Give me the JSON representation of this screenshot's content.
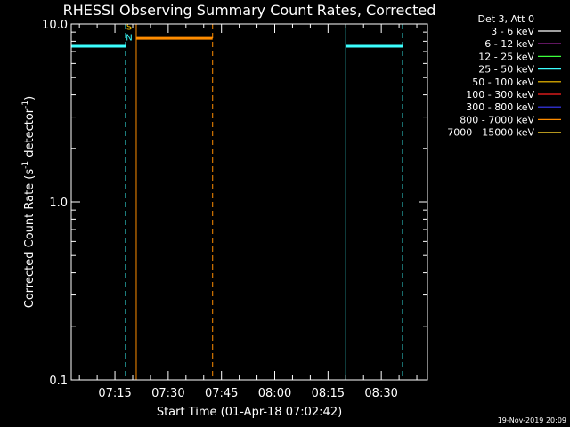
{
  "chart_data": {
    "type": "line",
    "title": "RHESSI Observing Summary Count Rates, Corrected",
    "xlabel": "Start Time (01-Apr-18 07:02:42)",
    "ylabel_main": "Corrected Count Rate (s",
    "ylabel_sup1": "-1",
    "ylabel_mid": " detector",
    "ylabel_sup2": "-1",
    "ylabel_end": ")",
    "yscale": "log",
    "ylim": [
      0.1,
      10.0
    ],
    "y_ticks": [
      {
        "value": 0.1,
        "label": "0.1"
      },
      {
        "value": 1.0,
        "label": "1.0"
      },
      {
        "value": 10.0,
        "label": "10.0"
      }
    ],
    "xlim": [
      "07:02:42",
      "08:43:00"
    ],
    "x_ticks": [
      {
        "time": "07:15",
        "label": "07:15"
      },
      {
        "time": "07:30",
        "label": "07:30"
      },
      {
        "time": "07:45",
        "label": "07:45"
      },
      {
        "time": "08:00",
        "label": "08:00"
      },
      {
        "time": "08:15",
        "label": "08:15"
      },
      {
        "time": "08:30",
        "label": "08:30"
      }
    ],
    "legend": {
      "placement": "right",
      "title": "Det 3, Att 0",
      "entries": [
        {
          "label": "3 - 6 keV",
          "color": "#ffffff"
        },
        {
          "label": "6 - 12 keV",
          "color": "#ff3cff"
        },
        {
          "label": "12 - 25 keV",
          "color": "#3cff3c"
        },
        {
          "label": "25 - 50 keV",
          "color": "#3cffff"
        },
        {
          "label": "50 - 100 keV",
          "color": "#ffc800"
        },
        {
          "label": "100 - 300 keV",
          "color": "#ff2020"
        },
        {
          "label": "300 - 800 keV",
          "color": "#3c3cff"
        },
        {
          "label": "800 - 7000 keV",
          "color": "#ff8c00"
        },
        {
          "label": "7000 - 15000 keV",
          "color": "#b4961e"
        }
      ]
    },
    "series": [
      {
        "name": "25 - 50 keV",
        "color": "#3cffff",
        "segments": [
          {
            "start": "07:02:42",
            "end": "07:18:00",
            "value": 7.5
          },
          {
            "start": "08:20:00",
            "end": "08:36:00",
            "value": 7.5
          }
        ]
      },
      {
        "name": "800 - 7000 keV",
        "color": "#ff8c00",
        "segments": [
          {
            "start": "07:21:00",
            "end": "07:42:30",
            "value": 8.3
          }
        ]
      }
    ],
    "vertical_lines": [
      {
        "time": "07:02:42",
        "color": "#3cffff",
        "style": "solid"
      },
      {
        "time": "07:18:00",
        "color": "#3cffff",
        "style": "dashed"
      },
      {
        "time": "07:21:00",
        "color": "#ff8c00",
        "style": "solid"
      },
      {
        "time": "07:42:30",
        "color": "#ff8c00",
        "style": "dashed"
      },
      {
        "time": "08:20:00",
        "color": "#3cffff",
        "style": "solid"
      },
      {
        "time": "08:36:00",
        "color": "#3cffff",
        "style": "dashed"
      }
    ],
    "markers": [
      {
        "time": "07:19:00",
        "text": "S",
        "color": "#ffc800",
        "value": 9.3
      },
      {
        "time": "07:19:00",
        "text": "N",
        "color": "#3cffff",
        "value": 8.1
      }
    ],
    "grid": false
  },
  "footer": {
    "timestamp": "19-Nov-2019 20:09"
  }
}
